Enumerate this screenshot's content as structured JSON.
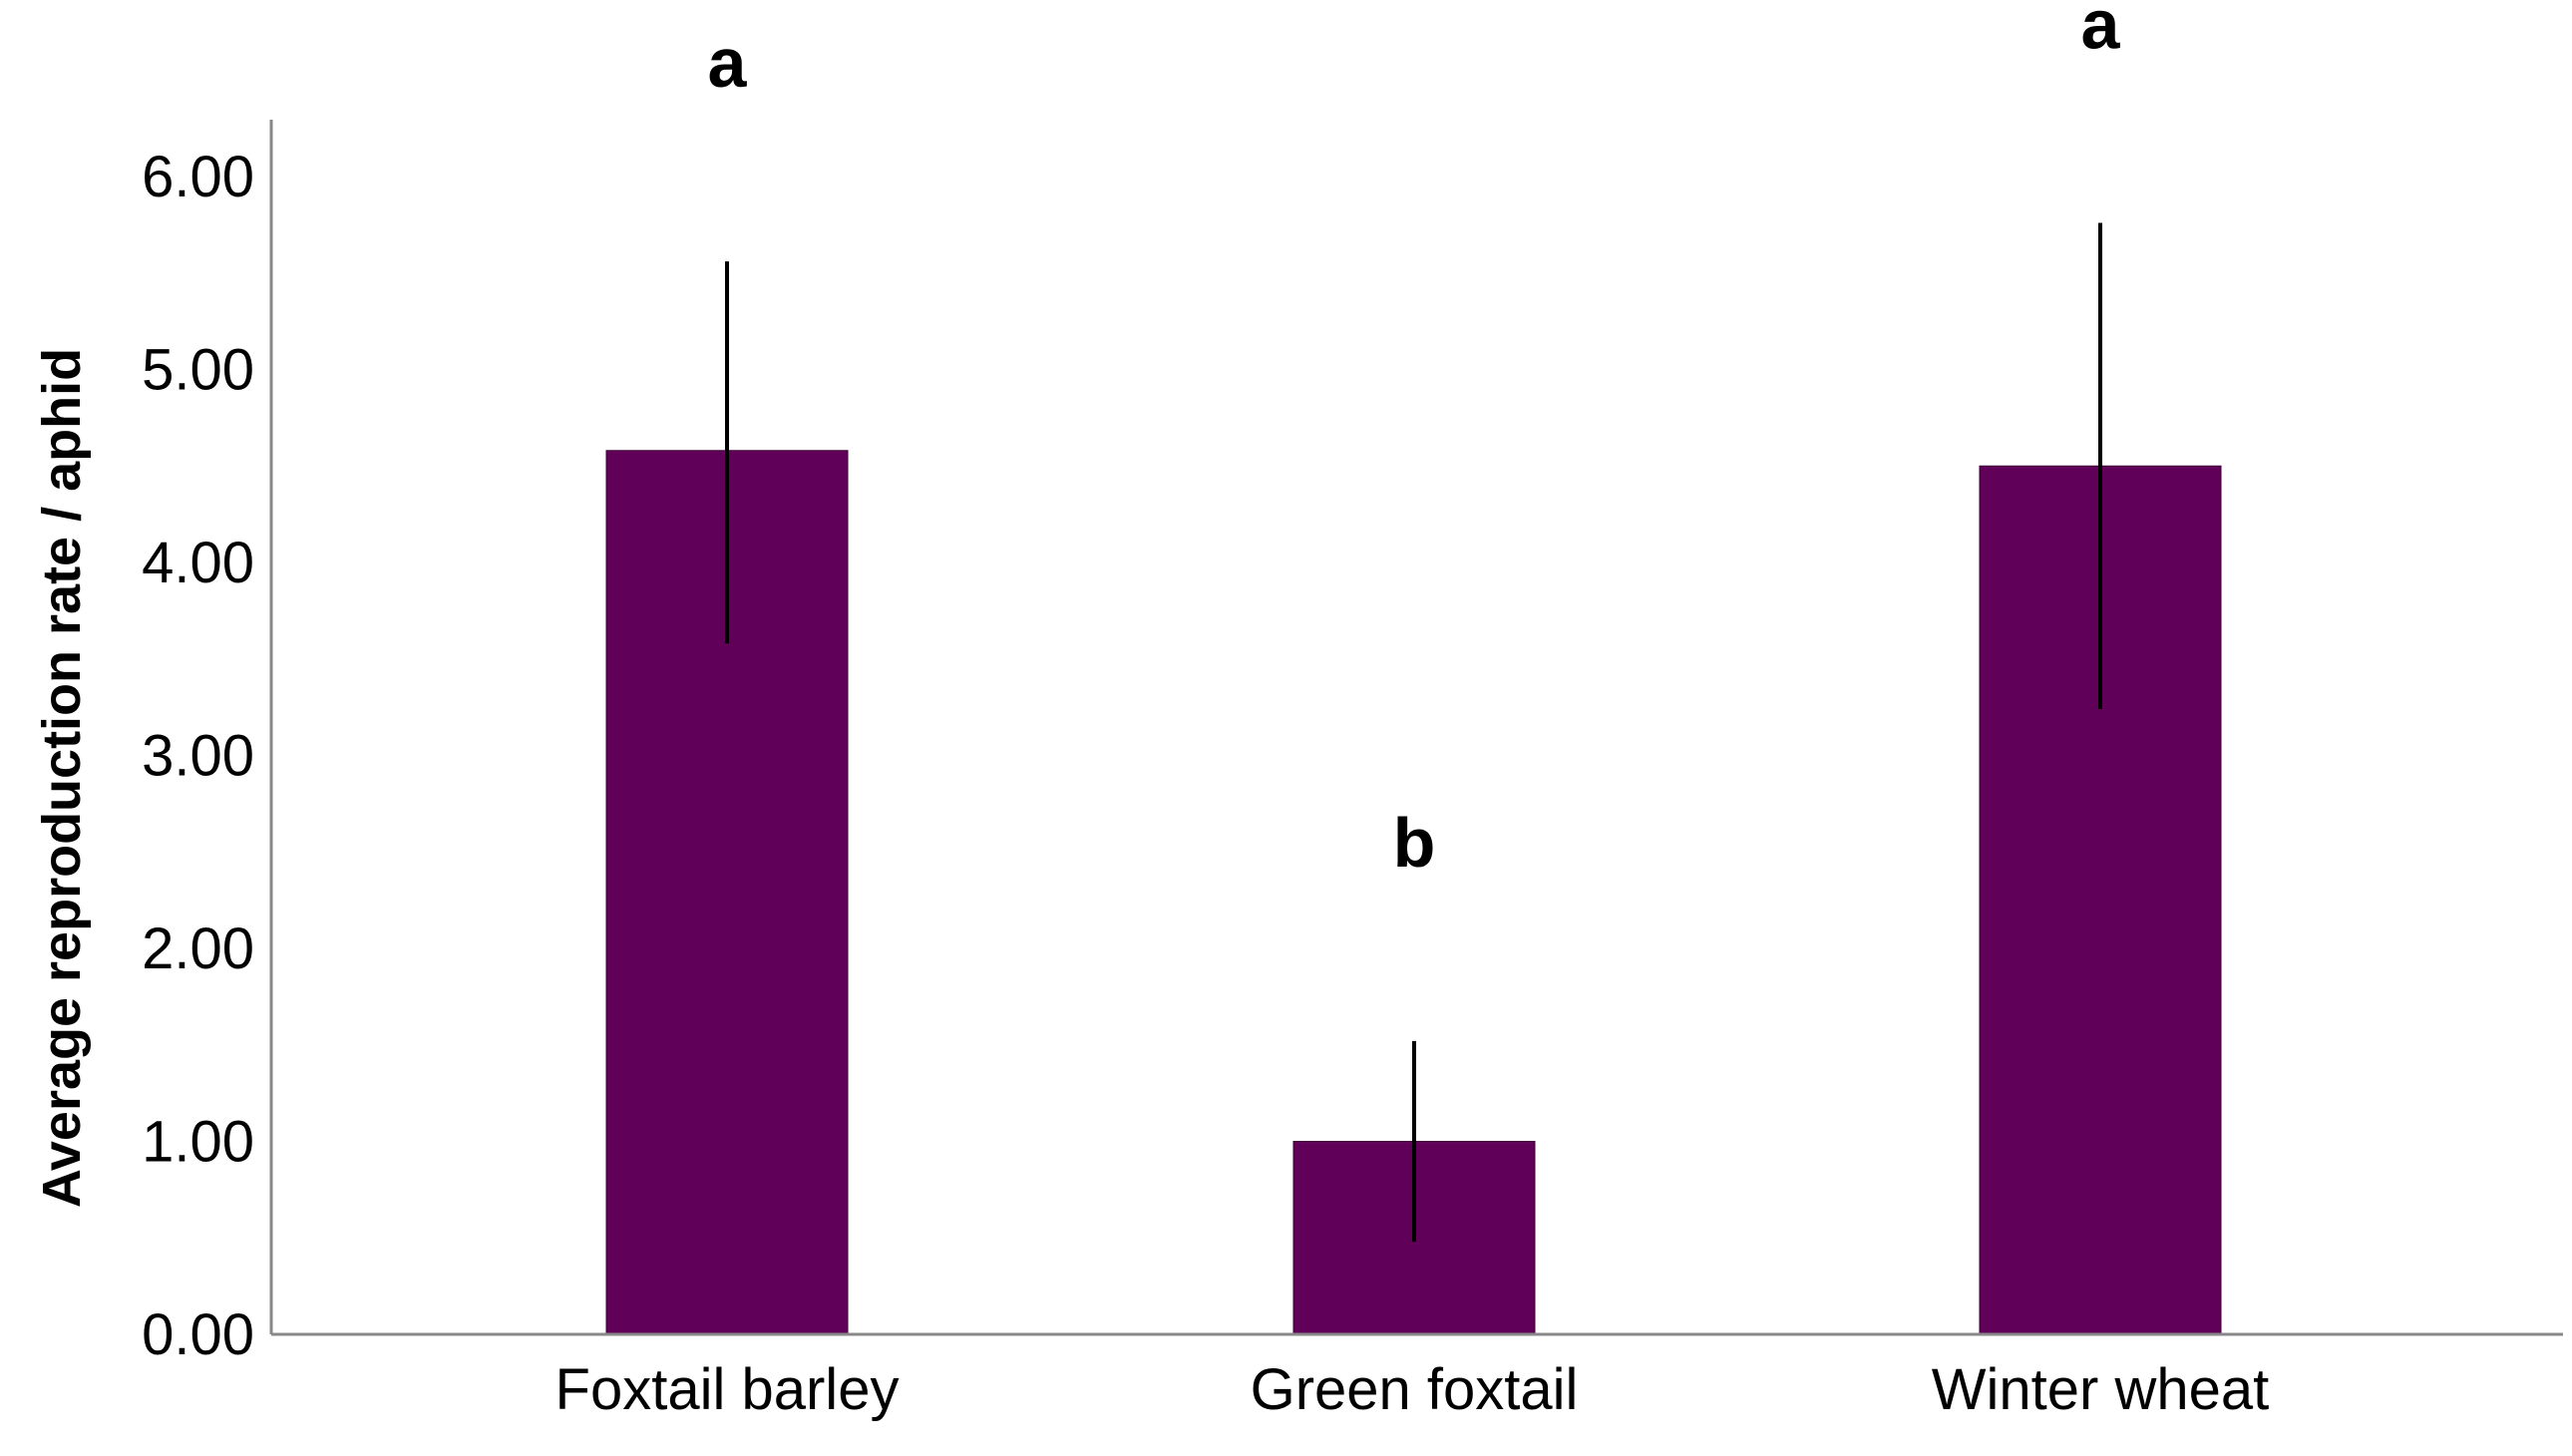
{
  "chart_data": {
    "type": "bar",
    "categories": [
      "Foxtail barley",
      "Green foxtail",
      "Winter wheat"
    ],
    "values": [
      4.58,
      1.0,
      4.5
    ],
    "error_bars": {
      "lower": [
        3.58,
        0.48,
        3.24
      ],
      "upper": [
        5.56,
        1.52,
        5.76
      ]
    },
    "significance_letters": [
      "a",
      "b",
      "a"
    ],
    "title": "",
    "xlabel": "",
    "ylabel": "Average reproduction rate / aphid",
    "ylim": [
      0,
      6.3
    ],
    "yticks": [
      0,
      1,
      2,
      3,
      4,
      5,
      6
    ],
    "ytick_labels": [
      "0.00",
      "1.00",
      "2.00",
      "3.00",
      "4.00",
      "5.00",
      "6.00"
    ],
    "grid": false,
    "legend": "none",
    "bar_color": "#610058",
    "axis_color": "#888888",
    "errorbar_color": "#000000"
  }
}
